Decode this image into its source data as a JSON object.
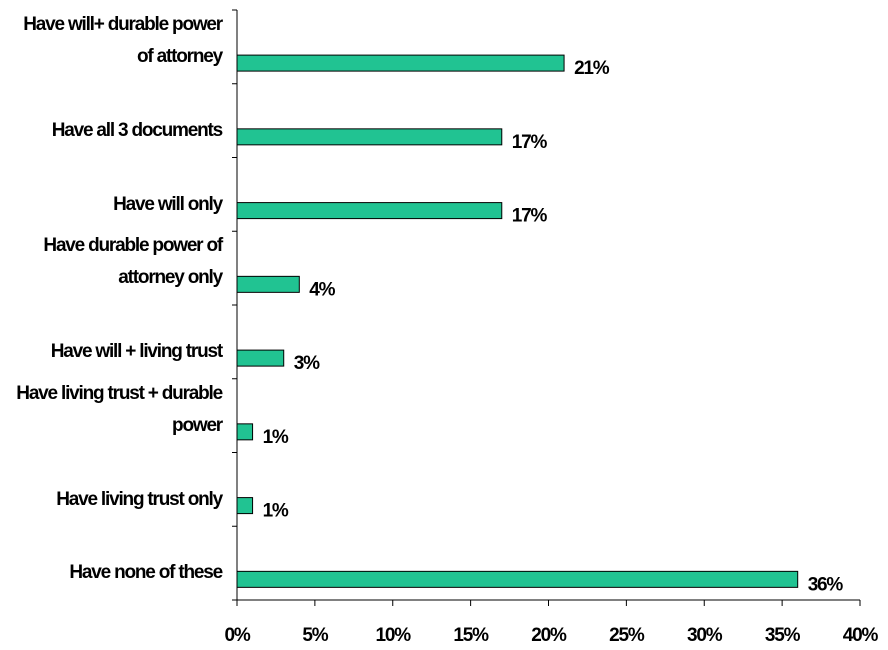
{
  "chart_data": {
    "type": "bar",
    "orientation": "horizontal",
    "categories": [
      "Have will+ durable power of attorney",
      "Have all 3 documents",
      "Have will only",
      "Have durable power of attorney only",
      "Have will + living trust",
      "Have living trust + durable power",
      "Have living trust only",
      "Have none of these"
    ],
    "values": [
      21,
      17,
      17,
      4,
      3,
      1,
      1,
      36
    ],
    "value_labels": [
      "21%",
      "17%",
      "17%",
      "4%",
      "3%",
      "1%",
      "1%",
      "36%"
    ],
    "color": "#21c392",
    "xlim": [
      0,
      40
    ],
    "xticks": [
      {
        "value": 0,
        "label": "0%"
      },
      {
        "value": 5,
        "label": "5%"
      },
      {
        "value": 10,
        "label": "10%"
      },
      {
        "value": 15,
        "label": "15%"
      },
      {
        "value": 20,
        "label": "20%"
      },
      {
        "value": 25,
        "label": "25%"
      },
      {
        "value": 30,
        "label": "30%"
      },
      {
        "value": 35,
        "label": "35%"
      },
      {
        "value": 40,
        "label": "40%"
      }
    ],
    "grid": false
  }
}
